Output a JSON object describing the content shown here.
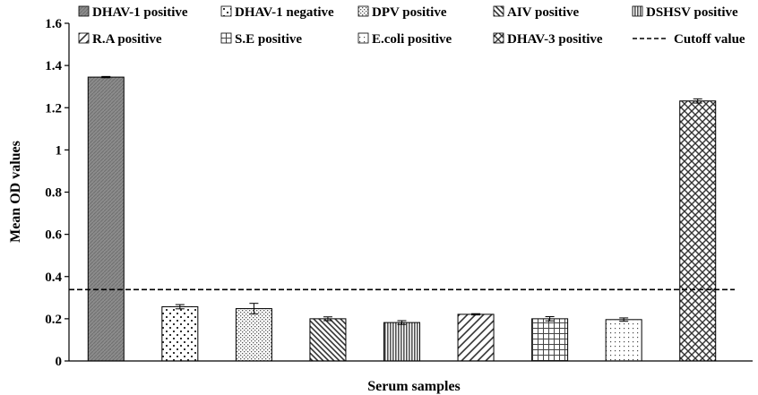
{
  "chart_data": {
    "type": "bar",
    "xlabel": "Serum samples",
    "ylabel": "Mean OD values",
    "ylim": [
      0,
      1.6
    ],
    "yticks": [
      "0",
      "0.2",
      "0.4",
      "0.6",
      "0.8",
      "1",
      "1.2",
      "1.4",
      "1.6"
    ],
    "grid": false,
    "legend_position": "top",
    "series": [
      {
        "name": "DHAV-1 positive",
        "value": 1.345,
        "error": 0.003,
        "pattern": "solid-gray"
      },
      {
        "name": "DHAV-1 negative",
        "value": 0.257,
        "error": 0.01,
        "pattern": "dots"
      },
      {
        "name": "DPV positive",
        "value": 0.248,
        "error": 0.025,
        "pattern": "fine-dots"
      },
      {
        "name": "AIV positive",
        "value": 0.2,
        "error": 0.009,
        "pattern": "diag-down"
      },
      {
        "name": "DSHSV positive",
        "value": 0.182,
        "error": 0.009,
        "pattern": "vertical-lines"
      },
      {
        "name": "R.A positive",
        "value": 0.221,
        "error": 0.003,
        "pattern": "diag-up"
      },
      {
        "name": "S.E positive",
        "value": 0.2,
        "error": 0.01,
        "pattern": "grid"
      },
      {
        "name": "E.coli positive",
        "value": 0.196,
        "error": 0.008,
        "pattern": "sparse-dots"
      },
      {
        "name": "DHAV-3 positive",
        "value": 1.232,
        "error": 0.01,
        "pattern": "crosshatch"
      }
    ],
    "cutoff": {
      "name": "Cutoff value",
      "value": 0.338,
      "style": "dashed"
    }
  }
}
